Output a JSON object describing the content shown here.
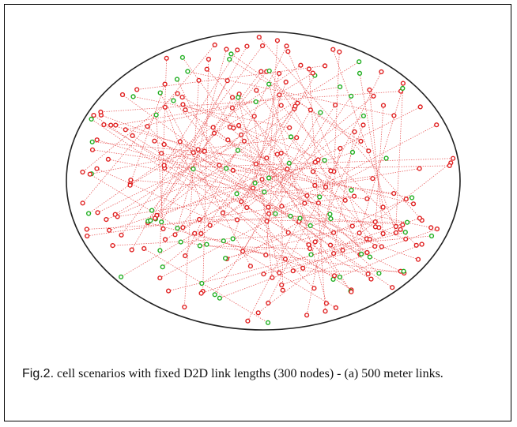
{
  "figure": {
    "caption_label": "Fig.2.",
    "caption_text": " cell scenarios with fixed D2D link lengths (300 nodes) - (a) 500 meter links.",
    "colors": {
      "cell_boundary": "#222222",
      "link": "#e85a5a",
      "transmitter_node": "#e02020",
      "receiver_node": "#1fae1f"
    }
  }
}
